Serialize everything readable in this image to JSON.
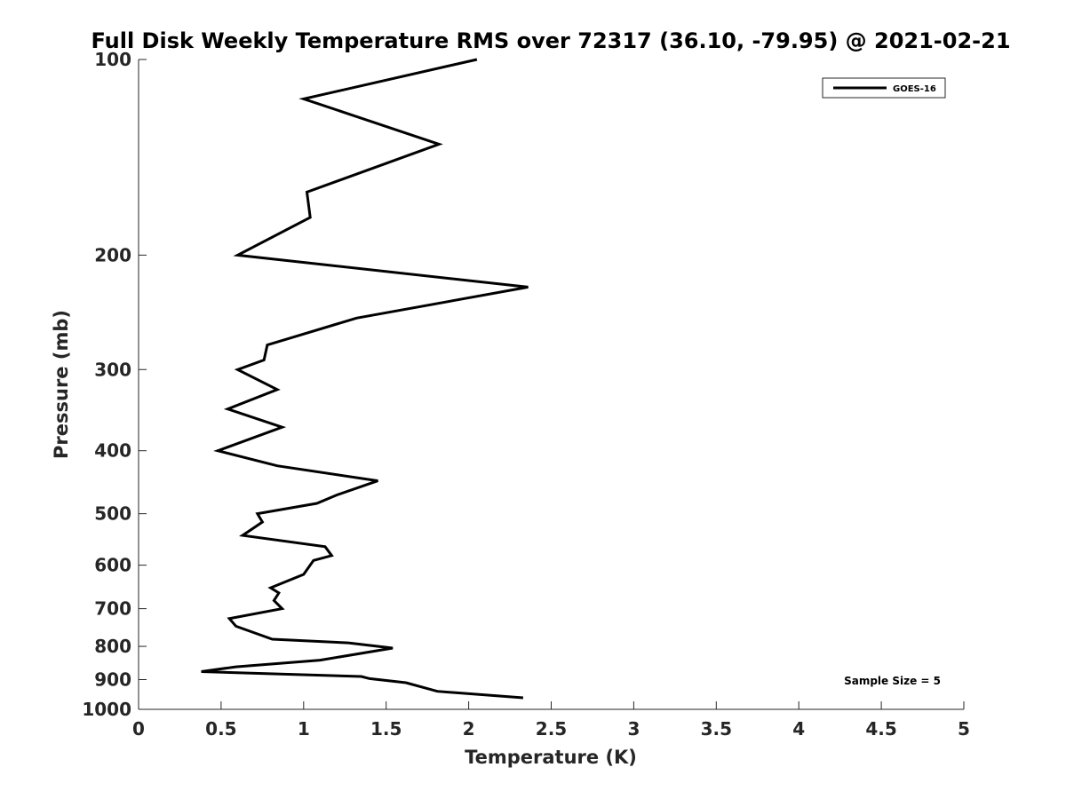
{
  "chart_data": {
    "type": "line",
    "title": "Full Disk Weekly Temperature RMS over 72317 (36.10, -79.95) @ 2021-02-21",
    "xlabel": "Temperature (K)",
    "ylabel": "Pressure (mb)",
    "xlim": [
      0,
      5
    ],
    "ylim": [
      100,
      1000
    ],
    "y_scale": "log",
    "y_reversed": true,
    "x_ticks": [
      0,
      0.5,
      1,
      1.5,
      2,
      2.5,
      3,
      3.5,
      4,
      4.5,
      5
    ],
    "x_tick_labels": [
      "0",
      "0.5",
      "1",
      "1.5",
      "2",
      "2.5",
      "3",
      "3.5",
      "4",
      "4.5",
      "5"
    ],
    "y_ticks": [
      100,
      200,
      300,
      400,
      500,
      600,
      700,
      800,
      900,
      1000
    ],
    "y_tick_labels": [
      "100",
      "200",
      "300",
      "400",
      "500",
      "600",
      "700",
      "800",
      "900",
      "1000"
    ],
    "grid": false,
    "legend_position": "top-right",
    "series": [
      {
        "name": "GOES-16",
        "color": "#000000",
        "x": [
          2.05,
          1.0,
          1.82,
          1.02,
          1.04,
          0.6,
          2.36,
          1.32,
          0.78,
          0.76,
          0.6,
          0.84,
          0.54,
          0.87,
          0.48,
          0.84,
          1.45,
          1.2,
          1.08,
          0.72,
          0.75,
          0.63,
          1.13,
          1.17,
          1.06,
          1.0,
          0.8,
          0.85,
          0.82,
          0.87,
          0.55,
          0.59,
          0.81,
          1.27,
          1.54,
          1.1,
          0.59,
          0.38,
          1.35,
          1.4,
          1.62,
          1.81,
          2.33
        ],
        "y": [
          100,
          115,
          135,
          160,
          175,
          200,
          224,
          250,
          275,
          290,
          300,
          322,
          345,
          368,
          400,
          422,
          445,
          468,
          482,
          500,
          515,
          540,
          562,
          580,
          590,
          620,
          650,
          662,
          680,
          700,
          725,
          745,
          780,
          790,
          805,
          840,
          860,
          875,
          890,
          897,
          910,
          938,
          960
        ]
      }
    ],
    "annotations": [
      "Sample Size = 5"
    ]
  }
}
